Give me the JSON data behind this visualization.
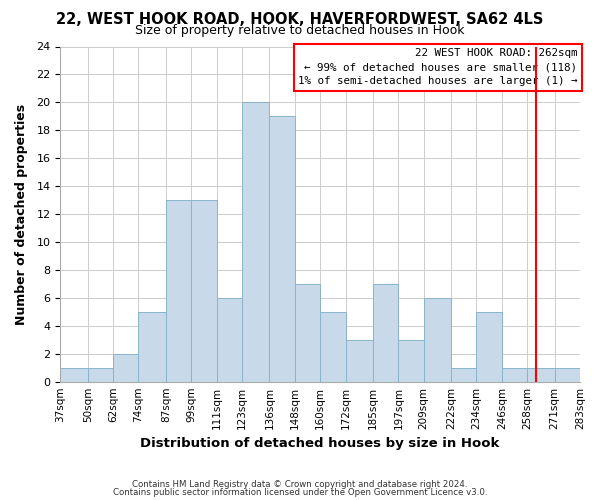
{
  "title": "22, WEST HOOK ROAD, HOOK, HAVERFORDWEST, SA62 4LS",
  "subtitle": "Size of property relative to detached houses in Hook",
  "xlabel": "Distribution of detached houses by size in Hook",
  "ylabel": "Number of detached properties",
  "bin_labels": [
    "37sqm",
    "50sqm",
    "62sqm",
    "74sqm",
    "87sqm",
    "99sqm",
    "111sqm",
    "123sqm",
    "136sqm",
    "148sqm",
    "160sqm",
    "172sqm",
    "185sqm",
    "197sqm",
    "209sqm",
    "222sqm",
    "234sqm",
    "246sqm",
    "258sqm",
    "271sqm",
    "283sqm"
  ],
  "bin_edges": [
    37,
    50,
    62,
    74,
    87,
    99,
    111,
    123,
    136,
    148,
    160,
    172,
    185,
    197,
    209,
    222,
    234,
    246,
    258,
    271,
    283
  ],
  "bar_heights": [
    1,
    1,
    2,
    5,
    13,
    13,
    6,
    20,
    19,
    7,
    5,
    3,
    7,
    3,
    6,
    1,
    5,
    1,
    1,
    1
  ],
  "bar_color": "#c8daea",
  "bar_edge_color": "#8ab4cc",
  "grid_color": "#cccccc",
  "ylim": [
    0,
    24
  ],
  "yticks": [
    0,
    2,
    4,
    6,
    8,
    10,
    12,
    14,
    16,
    18,
    20,
    22,
    24
  ],
  "annotation_line1": "22 WEST HOOK ROAD: 262sqm",
  "annotation_line2": "← 99% of detached houses are smaller (118)",
  "annotation_line3": "1% of semi-detached houses are larger (1) →",
  "redline_x": 262,
  "footer1": "Contains HM Land Registry data © Crown copyright and database right 2024.",
  "footer2": "Contains public sector information licensed under the Open Government Licence v3.0."
}
